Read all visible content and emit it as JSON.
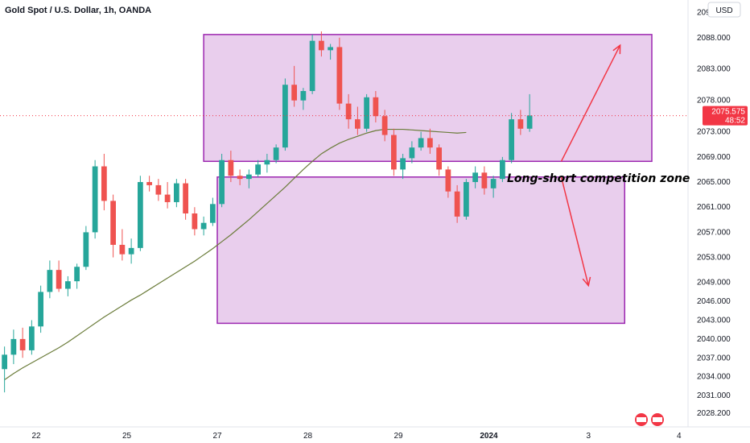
{
  "header": {
    "title": "Gold Spot / U.S. Dollar, 1h, OANDA"
  },
  "axis": {
    "currency": "USD"
  },
  "price_label": {
    "price": "2075.575",
    "countdown": "48:52"
  },
  "annotation": {
    "text": "Long-short competition zone"
  },
  "colors": {
    "up": "#26a69a",
    "down": "#ef5350",
    "zone_fill": "#e1bee7",
    "zone_border": "#9c27b0",
    "arrow": "#f23645",
    "ma": "#6b7c3a",
    "price_tag": "#f23645"
  },
  "chart_data": {
    "type": "candlestick",
    "title": "Gold Spot / U.S. Dollar, 1h, OANDA",
    "ylim": [
      2026,
      2094
    ],
    "y_ticks": [
      "2092.000",
      "2088.000",
      "2083.000",
      "2078.000",
      "2073.000",
      "2069.000",
      "2065.000",
      "2061.000",
      "2057.000",
      "2053.000",
      "2049.000",
      "2046.000",
      "2043.000",
      "2040.000",
      "2037.000",
      "2034.000",
      "2031.000",
      "2028.200"
    ],
    "x_ticks": [
      "22",
      "25",
      "27",
      "28",
      "29",
      "2024",
      "3",
      "4"
    ],
    "x_tick_index": [
      4,
      14,
      24,
      34,
      44,
      54,
      65,
      75
    ],
    "x_range": [
      0,
      76
    ],
    "candles": [
      [
        2035.2,
        2038.8,
        2031.5,
        2037.5
      ],
      [
        2037.5,
        2041.5,
        2036.0,
        2040.0
      ],
      [
        2040.0,
        2041.8,
        2037.0,
        2038.2
      ],
      [
        2038.2,
        2043.0,
        2037.5,
        2042.0
      ],
      [
        2042.0,
        2048.5,
        2041.0,
        2047.5
      ],
      [
        2047.5,
        2052.5,
        2046.5,
        2051.0
      ],
      [
        2051.0,
        2052.5,
        2047.5,
        2048.0
      ],
      [
        2048.0,
        2050.0,
        2046.8,
        2049.2
      ],
      [
        2049.2,
        2052.0,
        2048.0,
        2051.5
      ],
      [
        2051.5,
        2058.0,
        2051.0,
        2057.0
      ],
      [
        2057.0,
        2068.5,
        2056.0,
        2067.5
      ],
      [
        2067.5,
        2069.5,
        2060.5,
        2062.0
      ],
      [
        2062.0,
        2063.0,
        2053.0,
        2055.0
      ],
      [
        2055.0,
        2057.5,
        2052.5,
        2053.5
      ],
      [
        2053.5,
        2056.0,
        2052.0,
        2054.5
      ],
      [
        2054.5,
        2066.0,
        2054.0,
        2065.0
      ],
      [
        2065.0,
        2066.0,
        2063.5,
        2064.5
      ],
      [
        2064.5,
        2065.5,
        2062.0,
        2063.0
      ],
      [
        2063.0,
        2065.0,
        2060.8,
        2061.8
      ],
      [
        2061.8,
        2065.5,
        2061.0,
        2064.8
      ],
      [
        2064.8,
        2065.5,
        2059.0,
        2060.0
      ],
      [
        2060.0,
        2061.0,
        2056.5,
        2057.5
      ],
      [
        2057.5,
        2059.5,
        2056.5,
        2058.5
      ],
      [
        2058.5,
        2062.5,
        2058.0,
        2061.5
      ],
      [
        2061.5,
        2069.5,
        2061.0,
        2068.5
      ],
      [
        2068.5,
        2070.0,
        2065.0,
        2066.0
      ],
      [
        2066.0,
        2067.0,
        2064.5,
        2065.5
      ],
      [
        2065.5,
        2067.0,
        2064.0,
        2066.2
      ],
      [
        2066.2,
        2068.5,
        2065.8,
        2067.8
      ],
      [
        2067.8,
        2069.5,
        2066.5,
        2068.5
      ],
      [
        2068.5,
        2071.0,
        2068.0,
        2070.5
      ],
      [
        2070.5,
        2081.5,
        2070.0,
        2080.5
      ],
      [
        2080.5,
        2083.5,
        2077.0,
        2078.0
      ],
      [
        2078.0,
        2080.0,
        2076.5,
        2079.5
      ],
      [
        2079.5,
        2088.5,
        2079.0,
        2087.5
      ],
      [
        2087.5,
        2089.0,
        2085.0,
        2086.0
      ],
      [
        2086.0,
        2087.0,
        2084.5,
        2086.5
      ],
      [
        2086.5,
        2088.0,
        2076.5,
        2077.5
      ],
      [
        2077.5,
        2079.0,
        2073.5,
        2075.0
      ],
      [
        2075.0,
        2077.0,
        2072.5,
        2073.5
      ],
      [
        2073.5,
        2079.0,
        2073.0,
        2078.5
      ],
      [
        2078.5,
        2079.5,
        2074.5,
        2075.5
      ],
      [
        2075.5,
        2076.5,
        2071.5,
        2072.5
      ],
      [
        2072.5,
        2073.5,
        2066.0,
        2067.0
      ],
      [
        2067.0,
        2069.5,
        2065.5,
        2068.8
      ],
      [
        2068.8,
        2071.5,
        2068.0,
        2070.5
      ],
      [
        2070.5,
        2073.0,
        2070.0,
        2072.0
      ],
      [
        2072.0,
        2073.5,
        2069.5,
        2070.5
      ],
      [
        2070.5,
        2071.0,
        2066.0,
        2067.0
      ],
      [
        2067.0,
        2067.5,
        2062.5,
        2063.5
      ],
      [
        2063.5,
        2064.5,
        2058.5,
        2059.5
      ],
      [
        2059.5,
        2065.5,
        2059.0,
        2065.0
      ],
      [
        2065.0,
        2067.5,
        2064.0,
        2066.5
      ],
      [
        2066.5,
        2067.5,
        2063.0,
        2064.0
      ],
      [
        2064.0,
        2066.0,
        2062.5,
        2065.5
      ],
      [
        2065.5,
        2069.0,
        2065.0,
        2068.5
      ],
      [
        2068.5,
        2076.0,
        2068.0,
        2075.0
      ],
      [
        2075.0,
        2076.5,
        2072.5,
        2073.5
      ],
      [
        2073.5,
        2079.0,
        2073.0,
        2075.6
      ]
    ],
    "ma": [
      2033.5,
      2034.5,
      2035.4,
      2036.2,
      2037.0,
      2037.8,
      2038.6,
      2039.5,
      2040.5,
      2041.5,
      2042.5,
      2043.5,
      2044.4,
      2045.3,
      2046.2,
      2047.0,
      2047.9,
      2048.8,
      2049.7,
      2050.6,
      2051.5,
      2052.4,
      2053.4,
      2054.4,
      2055.5,
      2056.6,
      2057.8,
      2059.0,
      2060.3,
      2061.6,
      2062.9,
      2064.2,
      2065.6,
      2067.0,
      2068.3,
      2069.5,
      2070.4,
      2071.2,
      2071.8,
      2072.3,
      2072.8,
      2073.2,
      2073.4,
      2073.4,
      2073.4,
      2073.3,
      2073.2,
      2073.1,
      2073.0,
      2072.9,
      2072.8,
      2072.9
    ],
    "zones": [
      {
        "x0": 22.5,
        "x1": 72.0,
        "y0": 2068.3,
        "y1": 2088.5
      },
      {
        "x0": 24.0,
        "x1": 69.0,
        "y0": 2042.5,
        "y1": 2065.8
      }
    ],
    "arrows": [
      {
        "from": [
          62.0,
          2068.3
        ],
        "to": [
          68.5,
          2086.8
        ]
      },
      {
        "from": [
          62.0,
          2065.8
        ],
        "to": [
          65.0,
          2048.5
        ]
      }
    ],
    "last_price": 2075.575,
    "grid": false,
    "legend": "none"
  }
}
